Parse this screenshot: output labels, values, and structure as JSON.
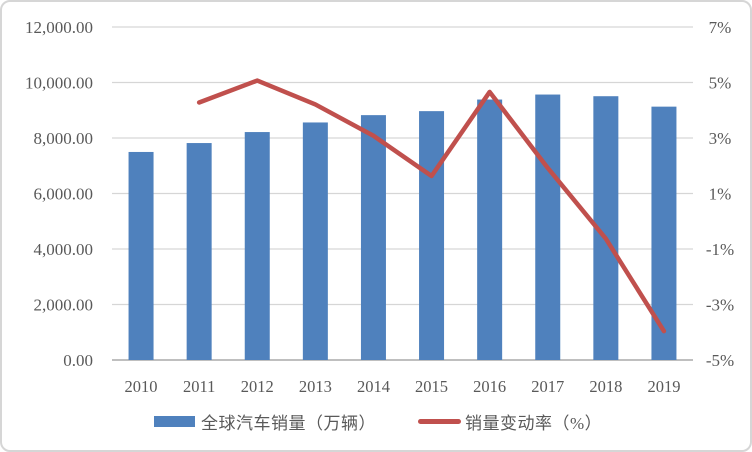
{
  "chart_data": {
    "type": "combo",
    "title": "",
    "categories": [
      "2010",
      "2011",
      "2012",
      "2013",
      "2014",
      "2015",
      "2016",
      "2017",
      "2018",
      "2019"
    ],
    "series": [
      {
        "name": "全球汽车销量（万辆）",
        "type": "bar",
        "axis": "left",
        "color": "#4F81BD",
        "values": [
          7497,
          7818,
          8214,
          8560,
          8824,
          8968,
          9386,
          9566,
          9506,
          9130
        ]
      },
      {
        "name": "销量变动率（%）",
        "type": "line",
        "axis": "right",
        "color": "#C0504D",
        "values": [
          null,
          4.28,
          5.07,
          4.21,
          3.08,
          1.63,
          4.66,
          1.92,
          -0.63,
          -3.96
        ]
      }
    ],
    "left_axis": {
      "min": 0,
      "max": 12000,
      "tick_step": 2000,
      "tick_labels": [
        "12,000.00",
        "10,000.00",
        "8,000.00",
        "6,000.00",
        "4,000.00",
        "2,000.00",
        "0.00"
      ]
    },
    "right_axis": {
      "min": -5,
      "max": 7,
      "tick_step": 2,
      "tick_labels": [
        "7%",
        "5%",
        "3%",
        "1%",
        "-1%",
        "-3%",
        "-5%"
      ]
    },
    "grid": true,
    "legend_position": "bottom",
    "colors": {
      "bar": "#4F81BD",
      "line": "#C0504D",
      "gridline": "#D6D6D6",
      "axis_line": "#BFBFBF",
      "text": "#595959",
      "frame_border": "#D6D6D6",
      "background": "#FFFFFF"
    }
  }
}
